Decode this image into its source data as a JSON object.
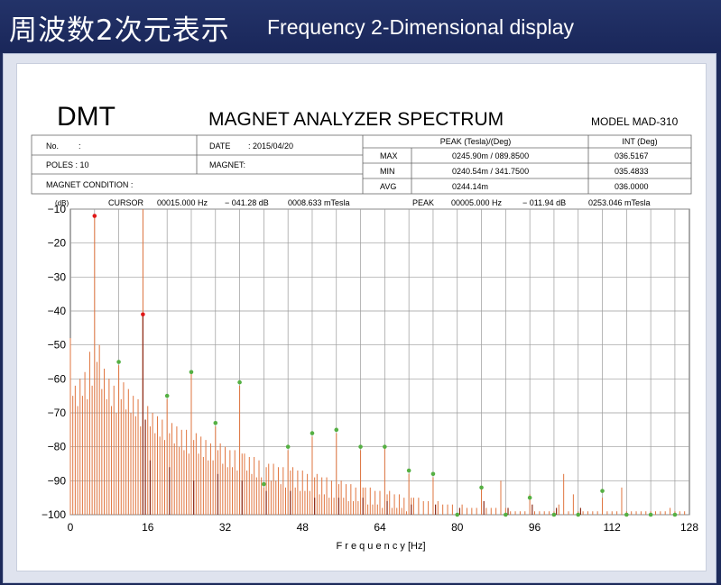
{
  "banner": {
    "title_jp": "周波数2次元表示",
    "title_en": "Frequency 2-Dimensional display"
  },
  "report": {
    "brand": "DMT",
    "title": "MAGNET ANALYZER SPECTRUM",
    "model": "MODEL MAD-310",
    "no_label": "No.",
    "no_value": ":",
    "date_label": "DATE",
    "date_value": ":  2015/04/20",
    "poles": "POLES :  10",
    "magnet": "MAGNET:",
    "magnet_condition": "MAGNET CONDITION :",
    "peak_header": "PEAK (Tesla)/(Deg)",
    "int_header": "INT (Deg)",
    "rows": [
      {
        "label": "MAX",
        "peak": "0245.90m  /  089.8500",
        "int": "036.5167"
      },
      {
        "label": "MIN",
        "peak": "0240.54m  /  341.7500",
        "int": "035.4833"
      },
      {
        "label": "AVG",
        "peak": "0244.14m",
        "int": "036.0000"
      }
    ]
  },
  "cursor_line": {
    "db_unit": "(dB)",
    "cursor_label": "CURSOR",
    "cursor_freq": "00015.000 Hz",
    "cursor_db": "− 041.28 dB",
    "cursor_tesla": "0008.633 mTesla",
    "peak_label": "PEAK",
    "peak_freq": "00005.000 Hz",
    "peak_db": "− 011.94 dB",
    "peak_tesla": "0253.046 mTesla"
  },
  "chart_data": {
    "type": "bar",
    "xlabel": "F r e q u e n c y [Hz]",
    "ylabel": "",
    "xlim": [
      0,
      128
    ],
    "ylim": [
      -100,
      -10
    ],
    "xticks": [
      0,
      16,
      32,
      48,
      64,
      80,
      96,
      112,
      128
    ],
    "yticks": [
      -10,
      -20,
      -30,
      -40,
      -50,
      -60,
      -70,
      -80,
      -90,
      -100
    ],
    "grid": true,
    "colors": {
      "spectrum": "#e0753f",
      "cursor": "#8b2a18",
      "red_marker": "#e01818",
      "green_marker": "#55b043",
      "grid": "#9a9a9a"
    },
    "cursor_x": 15,
    "spectrum": [
      [
        0,
        -48
      ],
      [
        0.5,
        -65
      ],
      [
        1,
        -62
      ],
      [
        1.5,
        -68
      ],
      [
        2,
        -60
      ],
      [
        2.5,
        -65
      ],
      [
        3,
        -58
      ],
      [
        3.5,
        -66
      ],
      [
        4,
        -52
      ],
      [
        4.5,
        -62
      ],
      [
        5,
        -12
      ],
      [
        5.5,
        -55
      ],
      [
        6,
        -50
      ],
      [
        6.5,
        -63
      ],
      [
        7,
        -57
      ],
      [
        7.5,
        -66
      ],
      [
        8,
        -60
      ],
      [
        8.5,
        -68
      ],
      [
        9,
        -62
      ],
      [
        9.5,
        -70
      ],
      [
        10,
        -56
      ],
      [
        10.5,
        -66
      ],
      [
        11,
        -61
      ],
      [
        11.5,
        -69
      ],
      [
        12,
        -63
      ],
      [
        12.5,
        -70
      ],
      [
        13,
        -65
      ],
      [
        13.5,
        -71
      ],
      [
        14,
        -66
      ],
      [
        14.5,
        -74
      ],
      [
        15,
        -41
      ],
      [
        15.5,
        -72
      ],
      [
        16,
        -68
      ],
      [
        16.5,
        -74
      ],
      [
        17,
        -70
      ],
      [
        17.5,
        -76
      ],
      [
        18,
        -71
      ],
      [
        18.5,
        -77
      ],
      [
        19,
        -72
      ],
      [
        19.5,
        -78
      ],
      [
        20,
        -66
      ],
      [
        20.5,
        -76
      ],
      [
        21,
        -73
      ],
      [
        21.5,
        -79
      ],
      [
        22,
        -74
      ],
      [
        22.5,
        -80
      ],
      [
        23,
        -75
      ],
      [
        23.5,
        -81
      ],
      [
        24,
        -75
      ],
      [
        24.5,
        -82
      ],
      [
        25,
        -58
      ],
      [
        25.5,
        -78
      ],
      [
        26,
        -76
      ],
      [
        26.5,
        -82
      ],
      [
        27,
        -77
      ],
      [
        27.5,
        -83
      ],
      [
        28,
        -78
      ],
      [
        28.5,
        -84
      ],
      [
        29,
        -79
      ],
      [
        29.5,
        -84
      ],
      [
        30,
        -74
      ],
      [
        30.5,
        -81
      ],
      [
        31,
        -79
      ],
      [
        31.5,
        -85
      ],
      [
        32,
        -80
      ],
      [
        32.5,
        -86
      ],
      [
        33,
        -81
      ],
      [
        33.5,
        -86
      ],
      [
        34,
        -81
      ],
      [
        34.5,
        -87
      ],
      [
        35,
        -62
      ],
      [
        35.5,
        -82
      ],
      [
        36,
        -82
      ],
      [
        36.5,
        -87
      ],
      [
        37,
        -83
      ],
      [
        37.5,
        -88
      ],
      [
        38,
        -83
      ],
      [
        38.5,
        -89
      ],
      [
        39,
        -84
      ],
      [
        39.5,
        -89
      ],
      [
        40,
        -92
      ],
      [
        40.5,
        -86
      ],
      [
        41,
        -85
      ],
      [
        41.5,
        -90
      ],
      [
        42,
        -85
      ],
      [
        42.5,
        -90
      ],
      [
        43,
        -86
      ],
      [
        43.5,
        -91
      ],
      [
        44,
        -86
      ],
      [
        44.5,
        -92
      ],
      [
        45,
        -81
      ],
      [
        45.5,
        -87
      ],
      [
        46,
        -86
      ],
      [
        46.5,
        -92
      ],
      [
        47,
        -87
      ],
      [
        47.5,
        -93
      ],
      [
        48,
        -87
      ],
      [
        48.5,
        -93
      ],
      [
        49,
        -88
      ],
      [
        49.5,
        -93
      ],
      [
        50,
        -77
      ],
      [
        50.5,
        -89
      ],
      [
        51,
        -88
      ],
      [
        51.5,
        -94
      ],
      [
        52,
        -89
      ],
      [
        52.5,
        -94
      ],
      [
        53,
        -89
      ],
      [
        53.5,
        -95
      ],
      [
        54,
        -90
      ],
      [
        54.5,
        -95
      ],
      [
        55,
        -76
      ],
      [
        55.5,
        -91
      ],
      [
        56,
        -90
      ],
      [
        56.5,
        -95
      ],
      [
        57,
        -91
      ],
      [
        57.5,
        -96
      ],
      [
        58,
        -91
      ],
      [
        58.5,
        -96
      ],
      [
        59,
        -92
      ],
      [
        59.5,
        -96
      ],
      [
        60,
        -81
      ],
      [
        60.5,
        -92
      ],
      [
        61,
        -92
      ],
      [
        61.5,
        -97
      ],
      [
        62,
        -92
      ],
      [
        62.5,
        -97
      ],
      [
        63,
        -93
      ],
      [
        63.5,
        -97
      ],
      [
        64,
        -93
      ],
      [
        64.5,
        -98
      ],
      [
        65,
        -80
      ],
      [
        65.5,
        -94
      ],
      [
        66,
        -93
      ],
      [
        66.5,
        -98
      ],
      [
        67,
        -94
      ],
      [
        67.5,
        -98
      ],
      [
        68,
        -94
      ],
      [
        68.5,
        -98
      ],
      [
        69,
        -95
      ],
      [
        69.5,
        -99
      ],
      [
        70,
        -88
      ],
      [
        70.5,
        -95
      ],
      [
        71,
        -95
      ],
      [
        72,
        -95
      ],
      [
        73,
        -96
      ],
      [
        74,
        -96
      ],
      [
        75,
        -89
      ],
      [
        76,
        -96
      ],
      [
        77,
        -97
      ],
      [
        78,
        -97
      ],
      [
        79,
        -97
      ],
      [
        80,
        -100
      ],
      [
        81,
        -97
      ],
      [
        82,
        -98
      ],
      [
        83,
        -98
      ],
      [
        84,
        -98
      ],
      [
        85,
        -92
      ],
      [
        86,
        -98
      ],
      [
        87,
        -98
      ],
      [
        88,
        -98
      ],
      [
        89,
        -90
      ],
      [
        90,
        -98
      ],
      [
        91,
        -99
      ],
      [
        92,
        -99
      ],
      [
        93,
        -99
      ],
      [
        94,
        -99
      ],
      [
        95,
        -94
      ],
      [
        96,
        -99
      ],
      [
        97,
        -99
      ],
      [
        98,
        -99
      ],
      [
        99,
        -99
      ],
      [
        100,
        -99
      ],
      [
        101,
        -97
      ],
      [
        102,
        -88
      ],
      [
        103,
        -99
      ],
      [
        104,
        -94
      ],
      [
        105,
        -99
      ],
      [
        106,
        -99
      ],
      [
        107,
        -99
      ],
      [
        108,
        -99
      ],
      [
        109,
        -99
      ],
      [
        110,
        -95
      ],
      [
        111,
        -99
      ],
      [
        112,
        -99
      ],
      [
        113,
        -99
      ],
      [
        114,
        -92
      ],
      [
        115,
        -99
      ],
      [
        116,
        -99
      ],
      [
        117,
        -99
      ],
      [
        118,
        -99
      ],
      [
        119,
        -99
      ],
      [
        120,
        -99
      ],
      [
        121,
        -99
      ],
      [
        122,
        -99
      ],
      [
        123,
        -99
      ],
      [
        124,
        -98
      ],
      [
        125,
        -99
      ],
      [
        126,
        -99
      ],
      [
        127,
        -99
      ]
    ],
    "dark_lines": [
      [
        15,
        -41
      ],
      [
        15.5,
        -72
      ],
      [
        16.5,
        -84
      ],
      [
        20.5,
        -86
      ],
      [
        25.5,
        -90
      ],
      [
        30.5,
        -88
      ],
      [
        35.5,
        -90
      ],
      [
        40.5,
        -93
      ],
      [
        45.5,
        -93
      ],
      [
        50.5,
        -95
      ],
      [
        55.5,
        -95
      ],
      [
        60.5,
        -95
      ],
      [
        65.5,
        -96
      ],
      [
        70.5,
        -97
      ],
      [
        75.5,
        -97
      ],
      [
        80.5,
        -98
      ],
      [
        85.5,
        -96
      ],
      [
        90.5,
        -98
      ],
      [
        95.5,
        -97
      ],
      [
        100.5,
        -98
      ],
      [
        105.5,
        -98
      ]
    ],
    "red_markers": [
      [
        5,
        -12
      ],
      [
        15,
        -41
      ]
    ],
    "green_markers": [
      [
        10,
        -55
      ],
      [
        20,
        -65
      ],
      [
        25,
        -58
      ],
      [
        30,
        -73
      ],
      [
        35,
        -61
      ],
      [
        40,
        -91
      ],
      [
        45,
        -80
      ],
      [
        50,
        -76
      ],
      [
        55,
        -75
      ],
      [
        60,
        -80
      ],
      [
        65,
        -80
      ],
      [
        70,
        -87
      ],
      [
        75,
        -88
      ],
      [
        80,
        -100
      ],
      [
        85,
        -92
      ],
      [
        90,
        -100
      ],
      [
        95,
        -95
      ],
      [
        100,
        -100
      ],
      [
        105,
        -100
      ],
      [
        110,
        -93
      ],
      [
        115,
        -100
      ],
      [
        120,
        -100
      ],
      [
        125,
        -100
      ]
    ]
  }
}
